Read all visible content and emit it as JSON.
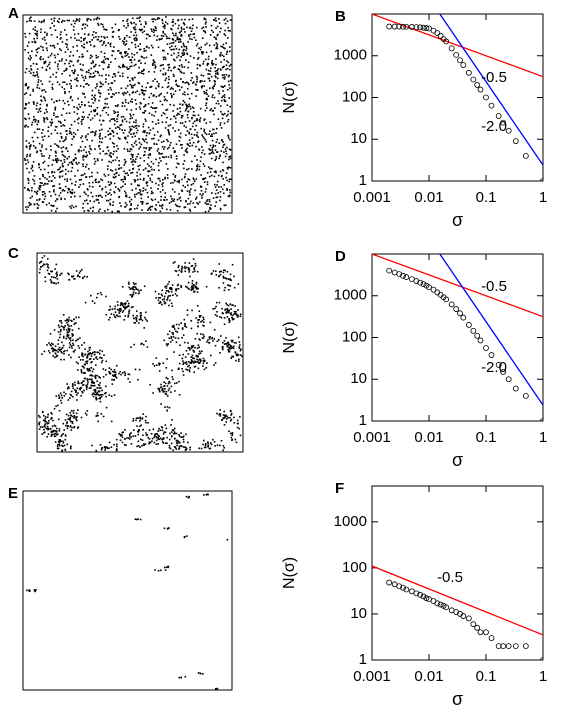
{
  "image_panels": [
    "A",
    "C",
    "E"
  ],
  "chart_data": [
    {
      "type": "scatter",
      "panel": "B",
      "xlabel": "σ",
      "ylabel": "N(σ)",
      "xscale": "log",
      "yscale": "log",
      "xlim": [
        0.001,
        1
      ],
      "xticks": [
        0.001,
        0.01,
        0.1,
        1
      ],
      "ylim": [
        1,
        10000
      ],
      "yticks": [
        1,
        10,
        100,
        1000
      ],
      "x": [
        0.002,
        0.0025,
        0.003,
        0.0035,
        0.004,
        0.005,
        0.006,
        0.007,
        0.008,
        0.009,
        0.01,
        0.012,
        0.014,
        0.016,
        0.018,
        0.02,
        0.025,
        0.03,
        0.035,
        0.04,
        0.05,
        0.06,
        0.07,
        0.08,
        0.1,
        0.125,
        0.167,
        0.2,
        0.25,
        0.333,
        0.5,
        1
      ],
      "values": [
        5000,
        5000,
        5000,
        4950,
        4950,
        4900,
        4850,
        4800,
        4700,
        4600,
        4500,
        4000,
        3500,
        3000,
        2500,
        2200,
        1500,
        1050,
        780,
        600,
        390,
        270,
        200,
        155,
        100,
        64,
        36,
        25,
        16,
        9,
        4,
        1
      ],
      "color": "#000000",
      "lines": [
        {
          "label": "-0.5",
          "color": "#ff0000",
          "x": [
            0.001,
            1
          ],
          "values": [
            10000,
            316
          ]
        },
        {
          "label": "-2.0",
          "color": "#0000ff",
          "x": [
            0.0155,
            1
          ],
          "values": [
            10000,
            2.4
          ]
        }
      ]
    },
    {
      "type": "scatter",
      "panel": "D",
      "xlabel": "σ",
      "ylabel": "N(σ)",
      "xscale": "log",
      "yscale": "log",
      "xlim": [
        0.001,
        1
      ],
      "xticks": [
        0.001,
        0.01,
        0.1,
        1
      ],
      "ylim": [
        1,
        10000
      ],
      "yticks": [
        1,
        10,
        100,
        1000
      ],
      "x": [
        0.002,
        0.0025,
        0.003,
        0.0035,
        0.004,
        0.005,
        0.006,
        0.007,
        0.008,
        0.009,
        0.01,
        0.012,
        0.014,
        0.016,
        0.018,
        0.02,
        0.025,
        0.03,
        0.035,
        0.04,
        0.05,
        0.06,
        0.07,
        0.08,
        0.1,
        0.125,
        0.167,
        0.2,
        0.25,
        0.333,
        0.5,
        1
      ],
      "values": [
        4000,
        3600,
        3300,
        3000,
        2800,
        2500,
        2250,
        2050,
        1900,
        1750,
        1600,
        1400,
        1200,
        1050,
        920,
        820,
        620,
        480,
        380,
        300,
        200,
        145,
        110,
        85,
        56,
        38,
        22,
        15,
        10,
        6,
        4,
        1
      ],
      "color": "#000000",
      "lines": [
        {
          "label": "-0.5",
          "color": "#ff0000",
          "x": [
            0.001,
            1
          ],
          "values": [
            10000,
            316
          ]
        },
        {
          "label": "-2.0",
          "color": "#0000ff",
          "x": [
            0.0155,
            1
          ],
          "values": [
            10000,
            2.4
          ]
        }
      ]
    },
    {
      "type": "scatter",
      "panel": "F",
      "xlabel": "σ",
      "ylabel": "N(σ)",
      "xscale": "log",
      "yscale": "log",
      "xlim": [
        0.001,
        1
      ],
      "xticks": [
        0.001,
        0.01,
        0.1,
        1
      ],
      "ylim": [
        1,
        6000
      ],
      "yticks": [
        1,
        10,
        100,
        1000
      ],
      "x": [
        0.002,
        0.0025,
        0.003,
        0.0035,
        0.004,
        0.005,
        0.006,
        0.007,
        0.008,
        0.009,
        0.01,
        0.012,
        0.014,
        0.016,
        0.018,
        0.02,
        0.025,
        0.03,
        0.035,
        0.04,
        0.05,
        0.06,
        0.07,
        0.08,
        0.1,
        0.125,
        0.167,
        0.2,
        0.25,
        0.333,
        0.5,
        1
      ],
      "values": [
        48,
        44,
        40,
        37,
        34,
        31,
        28,
        26,
        24,
        22,
        21,
        19,
        17,
        16,
        15,
        14,
        12,
        11,
        10,
        9,
        8,
        6,
        5,
        4,
        4,
        3,
        2,
        2,
        2,
        2,
        2,
        1
      ],
      "color": "#000000",
      "lines": [
        {
          "label": "-0.5",
          "color": "#ff0000",
          "x": [
            0.001,
            1
          ],
          "values": [
            110,
            3.5
          ]
        }
      ]
    }
  ]
}
